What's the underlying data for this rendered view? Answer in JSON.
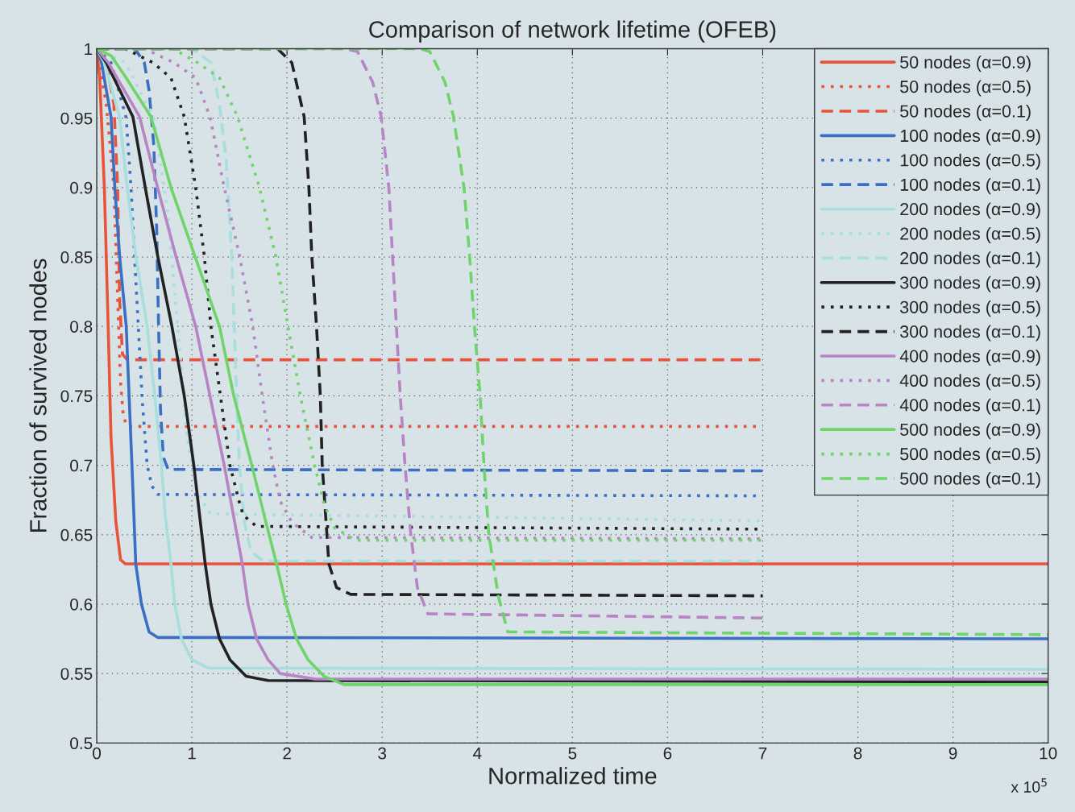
{
  "chart_data": {
    "type": "line",
    "title": "Comparison of network lifetime (OFEB)",
    "xlabel": "Normalized time",
    "ylabel": "Fraction of survived nodes",
    "xlim": [
      0,
      10
    ],
    "xticks": [
      0,
      1,
      2,
      3,
      4,
      5,
      6,
      7,
      8,
      9,
      10
    ],
    "ylim": [
      0.5,
      1
    ],
    "yticks": [
      0.5,
      0.55,
      0.6,
      0.65,
      0.7,
      0.75,
      0.8,
      0.85,
      0.9,
      0.95,
      1
    ],
    "grid": true,
    "legend": "top right",
    "marker": "none",
    "annotations": [
      "x 10$^{5}$"
    ],
    "series": [
      {
        "name": "50 nodes (α=0.9)",
        "color": "#e8533a",
        "line_style": "solid",
        "x": [
          0,
          0.03,
          0.08,
          0.12,
          0.15,
          0.2,
          0.25,
          0.3,
          10
        ],
        "values": [
          1,
          0.98,
          0.9,
          0.8,
          0.72,
          0.66,
          0.632,
          0.629,
          0.629
        ]
      },
      {
        "name": "50 nodes (α=0.5)",
        "color": "#e8533a",
        "line_style": "dotted",
        "x": [
          0,
          0.1,
          0.18,
          0.22,
          0.25,
          0.28,
          0.32,
          7
        ],
        "values": [
          1,
          0.96,
          0.9,
          0.82,
          0.76,
          0.735,
          0.728,
          0.728
        ]
      },
      {
        "name": "50 nodes (α=0.1)",
        "color": "#e8533a",
        "line_style": "dashed",
        "x": [
          0,
          0.1,
          0.18,
          0.22,
          0.24,
          0.27,
          0.32,
          7
        ],
        "values": [
          1,
          0.99,
          0.96,
          0.9,
          0.82,
          0.78,
          0.776,
          0.776
        ]
      },
      {
        "name": "100 nodes (α=0.9)",
        "color": "#3a6fc4",
        "line_style": "solid",
        "x": [
          0,
          0.05,
          0.15,
          0.19,
          0.24,
          0.31,
          0.34,
          0.37,
          0.41,
          0.47,
          0.55,
          0.64,
          10
        ],
        "values": [
          1,
          0.99,
          0.951,
          0.9,
          0.851,
          0.8,
          0.75,
          0.7,
          0.629,
          0.6,
          0.58,
          0.576,
          0.575
        ]
      },
      {
        "name": "100 nodes (α=0.5)",
        "color": "#3a6fc4",
        "line_style": "dotted",
        "x": [
          0,
          0.15,
          0.31,
          0.36,
          0.41,
          0.48,
          0.53,
          0.58,
          0.64,
          7
        ],
        "values": [
          1,
          0.99,
          0.95,
          0.9,
          0.834,
          0.745,
          0.7,
          0.685,
          0.679,
          0.678
        ]
      },
      {
        "name": "100 nodes (α=0.1)",
        "color": "#3a6fc4",
        "line_style": "dashed",
        "x": [
          0,
          0.4,
          0.5,
          0.55,
          0.6,
          0.63,
          0.65,
          0.67,
          0.7,
          0.75,
          7
        ],
        "values": [
          1,
          1,
          0.99,
          0.97,
          0.93,
          0.87,
          0.8,
          0.74,
          0.706,
          0.697,
          0.696
        ]
      },
      {
        "name": "200 nodes (α=0.9)",
        "color": "#a8dede",
        "line_style": "solid",
        "x": [
          0,
          0.08,
          0.24,
          0.32,
          0.41,
          0.53,
          0.61,
          0.68,
          0.72,
          0.78,
          0.82,
          0.89,
          1.0,
          1.17,
          10
        ],
        "values": [
          1,
          0.99,
          0.951,
          0.9,
          0.851,
          0.8,
          0.75,
          0.7,
          0.664,
          0.629,
          0.6,
          0.575,
          0.56,
          0.554,
          0.553
        ]
      },
      {
        "name": "200 nodes (α=0.5)",
        "color": "#a8dede",
        "line_style": "dotted",
        "x": [
          0,
          0.3,
          0.6,
          0.75,
          0.85,
          0.95,
          1.05,
          1.2,
          7
        ],
        "values": [
          1,
          0.99,
          0.95,
          0.88,
          0.8,
          0.72,
          0.68,
          0.665,
          0.66
        ]
      },
      {
        "name": "200 nodes (α=0.1)",
        "color": "#a8dede",
        "line_style": "dashed",
        "x": [
          0,
          1.0,
          1.2,
          1.29,
          1.36,
          1.42,
          1.46,
          1.5,
          1.55,
          1.62,
          1.75,
          7
        ],
        "values": [
          1,
          1,
          0.99,
          0.96,
          0.92,
          0.85,
          0.77,
          0.7,
          0.66,
          0.638,
          0.631,
          0.631
        ]
      },
      {
        "name": "300 nodes (α=0.9)",
        "color": "#222222",
        "line_style": "solid",
        "x": [
          0,
          0.1,
          0.38,
          0.51,
          0.64,
          0.79,
          0.92,
          1.02,
          1.14,
          1.2,
          1.29,
          1.4,
          1.57,
          1.8,
          10
        ],
        "values": [
          1,
          0.99,
          0.951,
          0.9,
          0.851,
          0.8,
          0.75,
          0.7,
          0.629,
          0.6,
          0.575,
          0.56,
          0.548,
          0.545,
          0.544
        ]
      },
      {
        "name": "300 nodes (α=0.5)",
        "color": "#222222",
        "line_style": "dotted",
        "x": [
          0,
          0.3,
          0.59,
          0.78,
          0.92,
          1.04,
          1.13,
          1.2,
          1.3,
          1.4,
          1.5,
          1.54,
          1.68,
          7
        ],
        "values": [
          1,
          1,
          0.99,
          0.979,
          0.951,
          0.9,
          0.851,
          0.8,
          0.75,
          0.7,
          0.673,
          0.664,
          0.656,
          0.654
        ]
      },
      {
        "name": "300 nodes (α=0.1)",
        "color": "#222222",
        "line_style": "dashed",
        "x": [
          0,
          1.9,
          2.05,
          2.1,
          2.18,
          2.23,
          2.26,
          2.31,
          2.35,
          2.37,
          2.44,
          2.52,
          2.67,
          7
        ],
        "values": [
          1,
          1,
          0.99,
          0.975,
          0.951,
          0.9,
          0.851,
          0.8,
          0.75,
          0.7,
          0.629,
          0.612,
          0.607,
          0.606
        ]
      },
      {
        "name": "400 nodes (α=0.9)",
        "color": "#b784c4",
        "line_style": "solid",
        "x": [
          0,
          0.12,
          0.45,
          0.64,
          0.83,
          1.04,
          1.19,
          1.34,
          1.53,
          1.59,
          1.68,
          1.8,
          1.93,
          2.3,
          10
        ],
        "values": [
          1,
          0.99,
          0.951,
          0.9,
          0.851,
          0.8,
          0.75,
          0.7,
          0.629,
          0.6,
          0.575,
          0.56,
          0.55,
          0.546,
          0.546
        ]
      },
      {
        "name": "400 nodes (α=0.5)",
        "color": "#b784c4",
        "line_style": "dotted",
        "x": [
          0,
          0.5,
          0.81,
          1.04,
          1.19,
          1.34,
          1.5,
          1.64,
          1.74,
          1.85,
          1.93,
          2.05,
          2.26,
          7
        ],
        "values": [
          1,
          1,
          0.99,
          0.979,
          0.951,
          0.9,
          0.851,
          0.8,
          0.75,
          0.7,
          0.674,
          0.659,
          0.648,
          0.647
        ]
      },
      {
        "name": "400 nodes (α=0.1)",
        "color": "#b784c4",
        "line_style": "dashed",
        "x": [
          0,
          2.6,
          2.74,
          2.9,
          2.99,
          3.07,
          3.11,
          3.15,
          3.19,
          3.24,
          3.3,
          3.37,
          3.48,
          7
        ],
        "values": [
          1,
          1,
          0.998,
          0.976,
          0.951,
          0.9,
          0.85,
          0.8,
          0.75,
          0.7,
          0.651,
          0.612,
          0.593,
          0.59
        ]
      },
      {
        "name": "500 nodes (α=0.9)",
        "color": "#6fd46a",
        "line_style": "solid",
        "x": [
          0,
          0.15,
          0.3,
          0.57,
          0.78,
          1.03,
          1.29,
          1.44,
          1.63,
          1.76,
          1.89,
          1.99,
          2.1,
          2.22,
          2.39,
          2.6,
          10
        ],
        "values": [
          1,
          0.995,
          0.98,
          0.951,
          0.9,
          0.851,
          0.8,
          0.75,
          0.7,
          0.664,
          0.629,
          0.6,
          0.575,
          0.56,
          0.548,
          0.542,
          0.542
        ]
      },
      {
        "name": "500 nodes (α=0.5)",
        "color": "#6fd46a",
        "line_style": "dotted",
        "x": [
          0,
          0.8,
          1.06,
          1.29,
          1.48,
          1.71,
          1.88,
          2.01,
          2.14,
          2.29,
          2.39,
          2.5,
          2.72,
          7
        ],
        "values": [
          1,
          1,
          0.99,
          0.979,
          0.951,
          0.9,
          0.851,
          0.8,
          0.75,
          0.7,
          0.672,
          0.655,
          0.646,
          0.646
        ]
      },
      {
        "name": "500 nodes (α=0.1)",
        "color": "#6fd46a",
        "line_style": "dashed",
        "x": [
          0,
          3.4,
          3.5,
          3.66,
          3.75,
          3.86,
          3.92,
          3.97,
          4.03,
          4.07,
          4.12,
          4.22,
          4.32,
          10
        ],
        "values": [
          1,
          1,
          0.998,
          0.976,
          0.951,
          0.9,
          0.85,
          0.8,
          0.75,
          0.7,
          0.651,
          0.606,
          0.58,
          0.578
        ]
      }
    ]
  }
}
